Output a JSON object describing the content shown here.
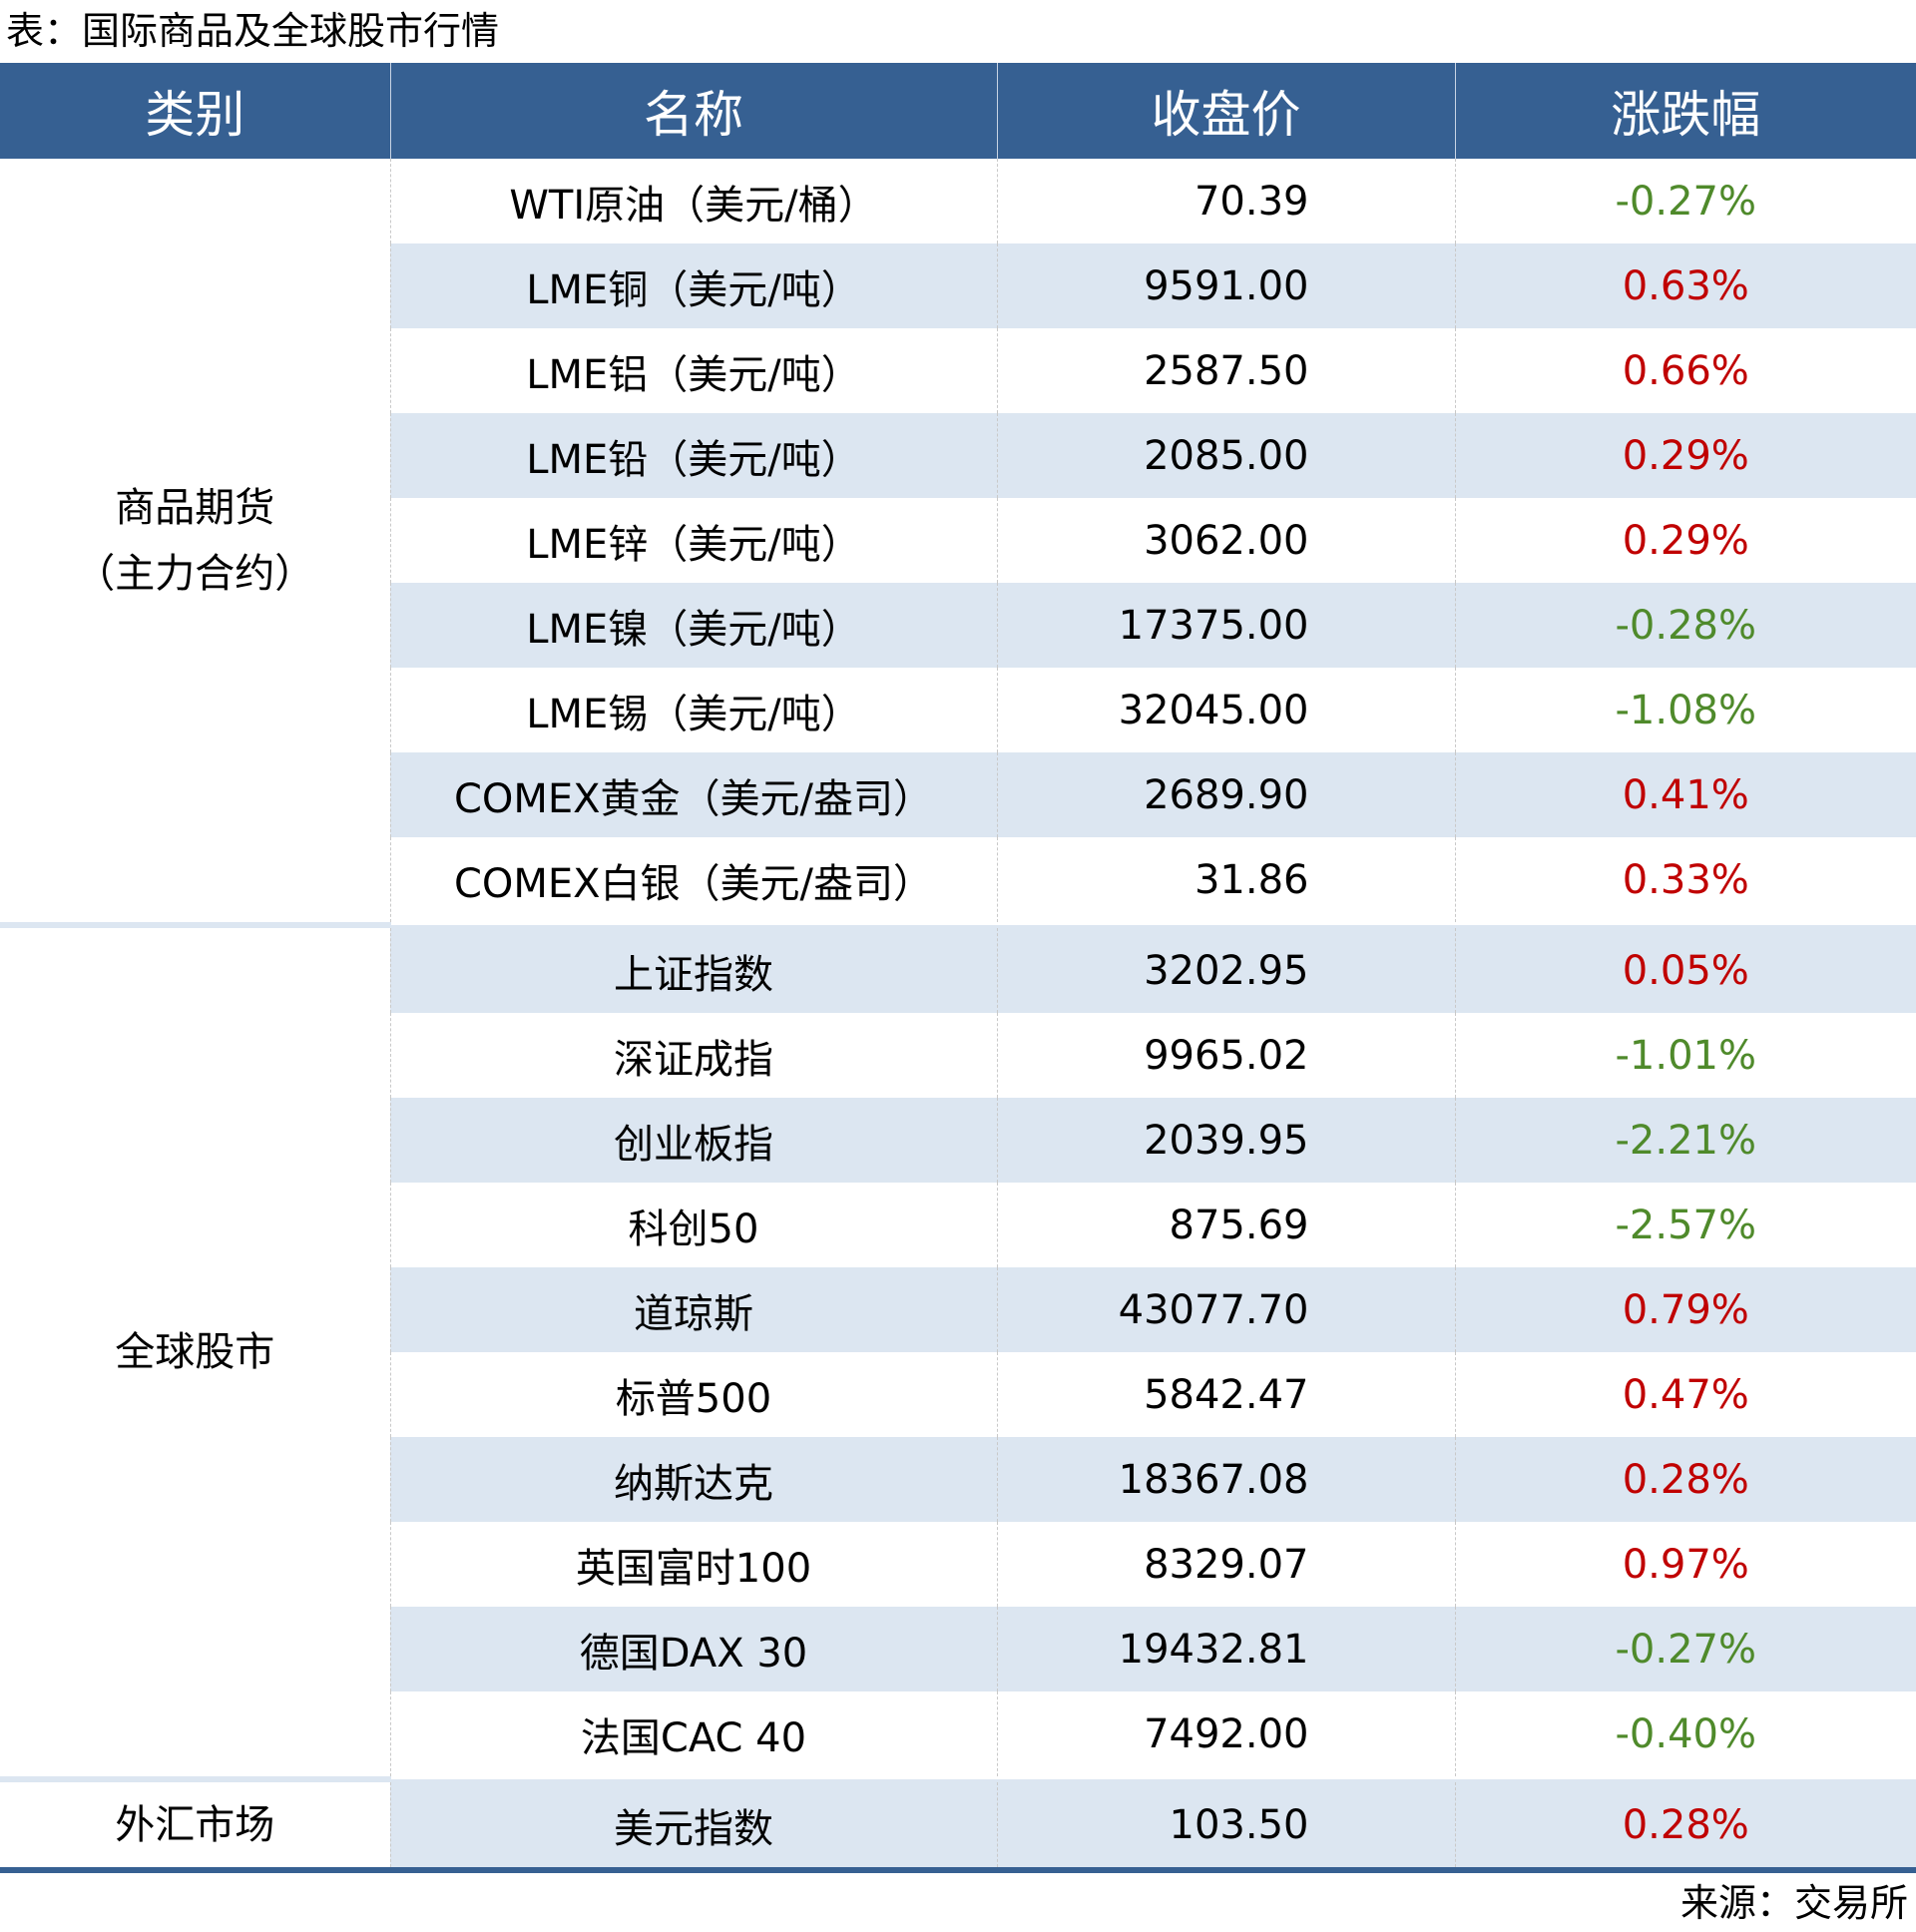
{
  "title": "表：国际商品及全球股市行情",
  "headers": [
    "类别",
    "名称",
    "收盘价",
    "涨跌幅"
  ],
  "colors": {
    "header_bg": "#366092",
    "stripe": "#dce6f1",
    "up": "#c00000",
    "down": "#4f8a2b"
  },
  "sections": [
    {
      "category": "商品期货（主力合约）",
      "rows": [
        {
          "name": "WTI原油（美元/桶）",
          "price": "70.39",
          "change": "-0.27%"
        },
        {
          "name": "LME铜（美元/吨）",
          "price": "9591.00",
          "change": "0.63%"
        },
        {
          "name": "LME铝（美元/吨）",
          "price": "2587.50",
          "change": "0.66%"
        },
        {
          "name": "LME铅（美元/吨）",
          "price": "2085.00",
          "change": "0.29%"
        },
        {
          "name": "LME锌（美元/吨）",
          "price": "3062.00",
          "change": "0.29%"
        },
        {
          "name": "LME镍（美元/吨）",
          "price": "17375.00",
          "change": "-0.28%"
        },
        {
          "name": "LME锡（美元/吨）",
          "price": "32045.00",
          "change": "-1.08%"
        },
        {
          "name": "COMEX黄金（美元/盎司）",
          "price": "2689.90",
          "change": "0.41%"
        },
        {
          "name": "COMEX白银（美元/盎司）",
          "price": "31.86",
          "change": "0.33%"
        }
      ]
    },
    {
      "category": "全球股市",
      "rows": [
        {
          "name": "上证指数",
          "price": "3202.95",
          "change": "0.05%"
        },
        {
          "name": "深证成指",
          "price": "9965.02",
          "change": "-1.01%"
        },
        {
          "name": "创业板指",
          "price": "2039.95",
          "change": "-2.21%"
        },
        {
          "name": "科创50",
          "price": "875.69",
          "change": "-2.57%"
        },
        {
          "name": "道琼斯",
          "price": "43077.70",
          "change": "0.79%"
        },
        {
          "name": "标普500",
          "price": "5842.47",
          "change": "0.47%"
        },
        {
          "name": "纳斯达克",
          "price": "18367.08",
          "change": "0.28%"
        },
        {
          "name": "英国富时100",
          "price": "8329.07",
          "change": "0.97%"
        },
        {
          "name": "德国DAX 30",
          "price": "19432.81",
          "change": "-0.27%"
        },
        {
          "name": "法国CAC 40",
          "price": "7492.00",
          "change": "-0.40%"
        }
      ]
    },
    {
      "category": "外汇市场",
      "rows": [
        {
          "name": "美元指数",
          "price": "103.50",
          "change": "0.28%"
        }
      ]
    }
  ],
  "source": "来源：交易所"
}
